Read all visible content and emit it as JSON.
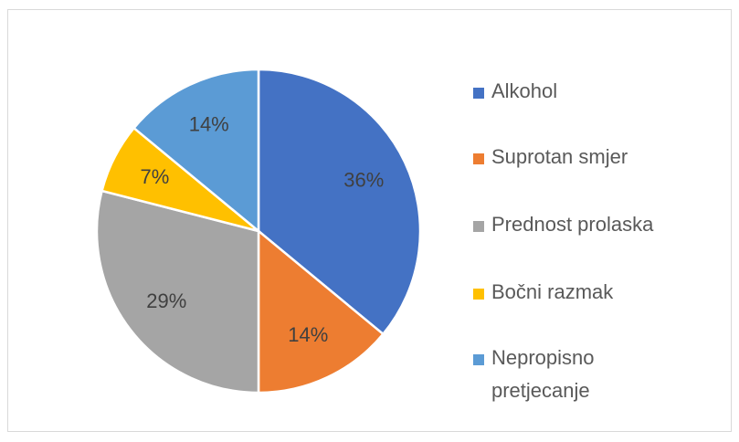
{
  "chart_data": {
    "type": "pie",
    "categories": [
      "Alkohol",
      "Suprotan smjer",
      "Prednost prolaska",
      "Bočni razmak",
      "Nepropisno pretjecanje"
    ],
    "values": [
      36,
      14,
      29,
      7,
      14
    ],
    "value_labels": [
      "36%",
      "14%",
      "29%",
      "7%",
      "14%"
    ],
    "colors": [
      "#4472c4",
      "#ed7d31",
      "#a5a5a5",
      "#ffc000",
      "#5b9bd5"
    ],
    "legend": "right"
  }
}
